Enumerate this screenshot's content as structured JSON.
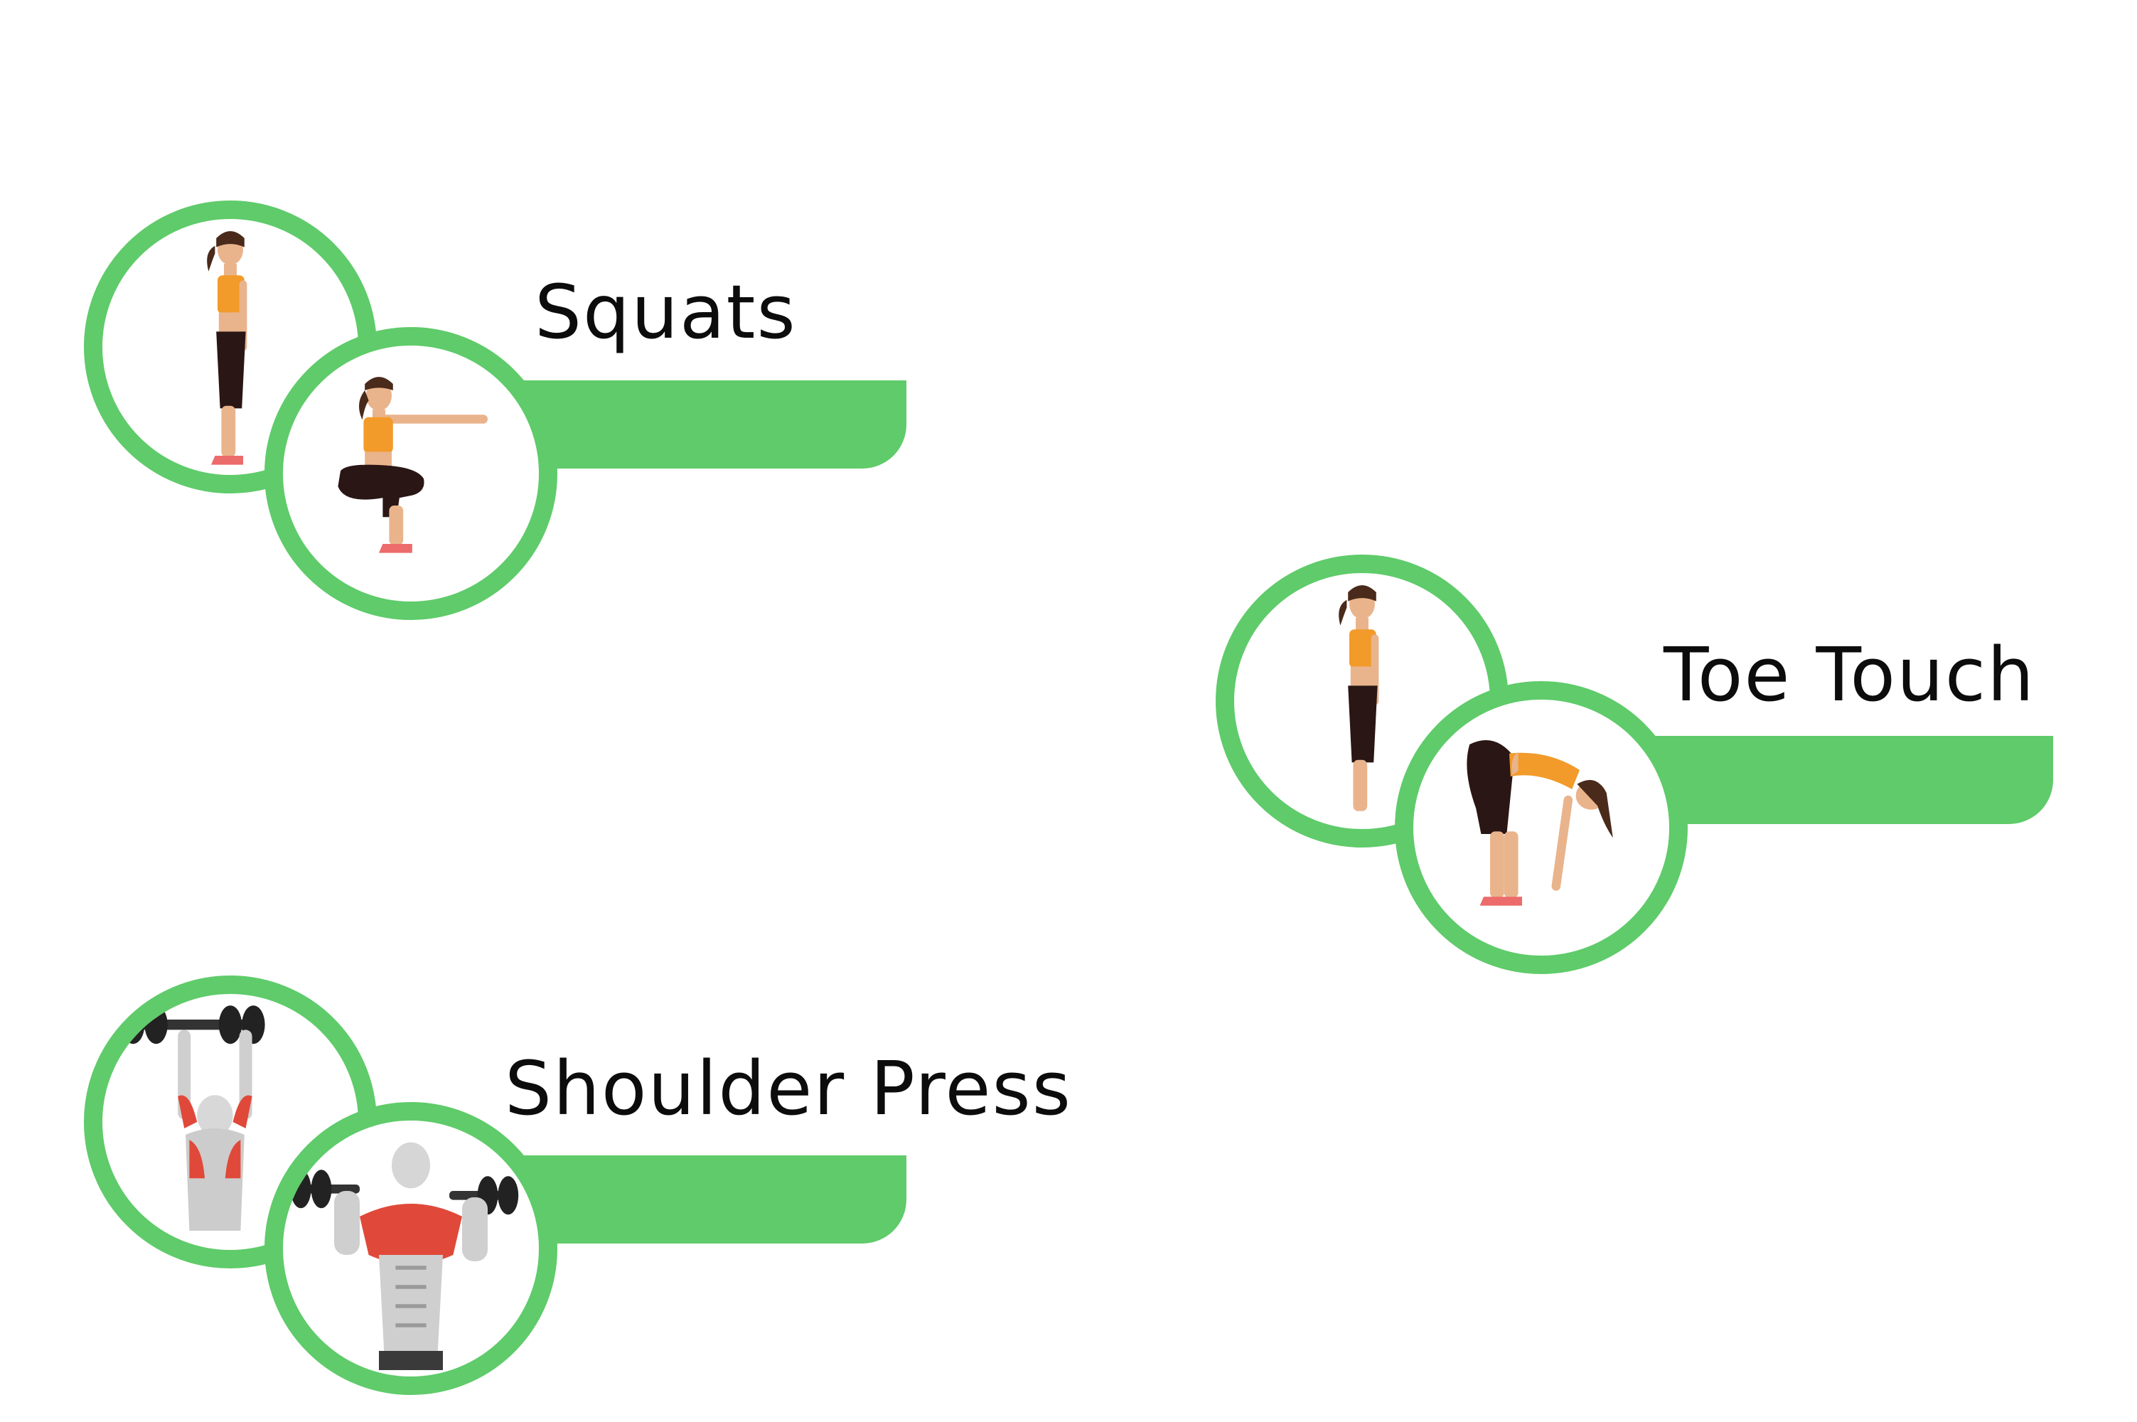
{
  "accent_color": "#5fcb6a",
  "exercises": [
    {
      "name": "Squats",
      "icons": [
        "standing-woman-illustration",
        "squatting-woman-illustration"
      ]
    },
    {
      "name": "Toe Touch",
      "icons": [
        "standing-woman-illustration",
        "forward-bend-woman-illustration"
      ]
    },
    {
      "name": "Shoulder Press",
      "icons": [
        "overhead-press-man-illustration",
        "dumbbell-press-man-illustration"
      ]
    }
  ]
}
